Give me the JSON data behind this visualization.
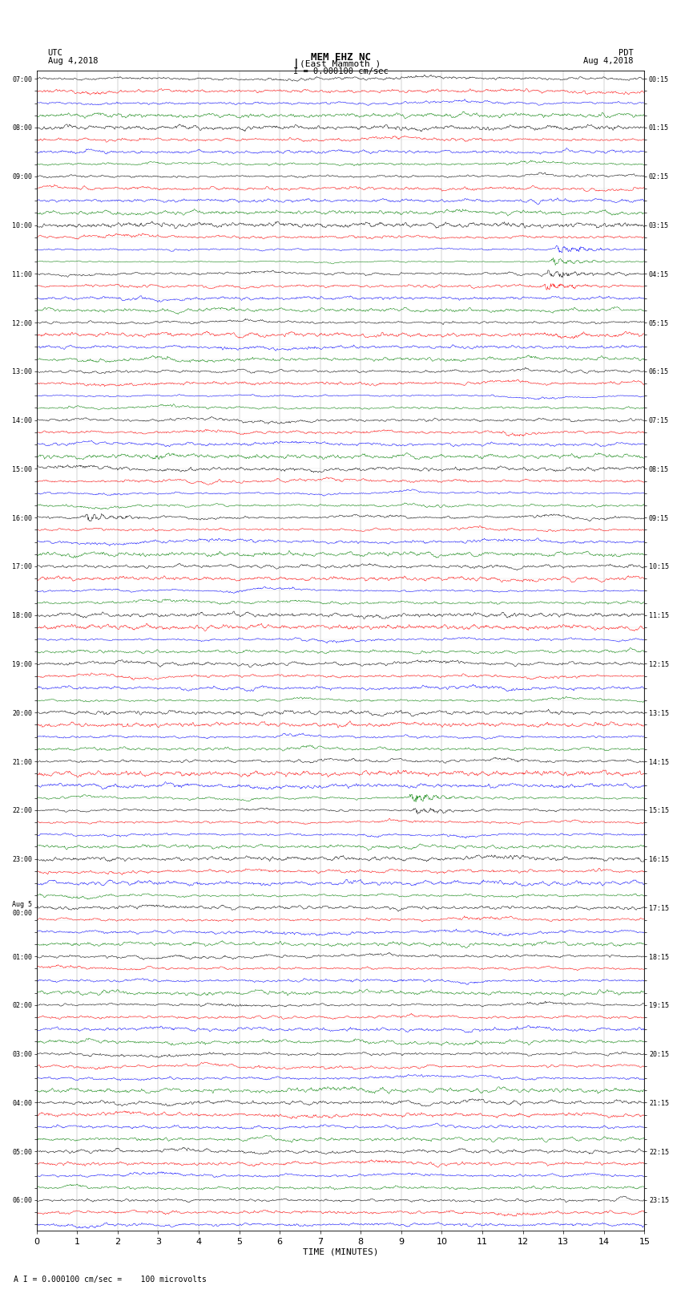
{
  "title_line1": "MEM EHZ NC",
  "title_line2": "(East Mammoth )",
  "scale_label": "I = 0.000100 cm/sec",
  "left_header_line1": "UTC",
  "left_header_line2": "Aug 4,2018",
  "right_header_line1": "PDT",
  "right_header_line2": "Aug 4,2018",
  "bottom_note": "A I = 0.000100 cm/sec =    100 microvolts",
  "xlabel": "TIME (MINUTES)",
  "utc_times": [
    "07:00",
    "",
    "",
    "",
    "08:00",
    "",
    "",
    "",
    "09:00",
    "",
    "",
    "",
    "10:00",
    "",
    "",
    "",
    "11:00",
    "",
    "",
    "",
    "12:00",
    "",
    "",
    "",
    "13:00",
    "",
    "",
    "",
    "14:00",
    "",
    "",
    "",
    "15:00",
    "",
    "",
    "",
    "16:00",
    "",
    "",
    "",
    "17:00",
    "",
    "",
    "",
    "18:00",
    "",
    "",
    "",
    "19:00",
    "",
    "",
    "",
    "20:00",
    "",
    "",
    "",
    "21:00",
    "",
    "",
    "",
    "22:00",
    "",
    "",
    "",
    "23:00",
    "",
    "",
    "",
    "Aug 5\n00:00",
    "",
    "",
    "",
    "01:00",
    "",
    "",
    "",
    "02:00",
    "",
    "",
    "",
    "03:00",
    "",
    "",
    "",
    "04:00",
    "",
    "",
    "",
    "05:00",
    "",
    "",
    "",
    "06:00",
    "",
    ""
  ],
  "pdt_times": [
    "00:15",
    "",
    "",
    "",
    "01:15",
    "",
    "",
    "",
    "02:15",
    "",
    "",
    "",
    "03:15",
    "",
    "",
    "",
    "04:15",
    "",
    "",
    "",
    "05:15",
    "",
    "",
    "",
    "06:15",
    "",
    "",
    "",
    "07:15",
    "",
    "",
    "",
    "08:15",
    "",
    "",
    "",
    "09:15",
    "",
    "",
    "",
    "10:15",
    "",
    "",
    "",
    "11:15",
    "",
    "",
    "",
    "12:15",
    "",
    "",
    "",
    "13:15",
    "",
    "",
    "",
    "14:15",
    "",
    "",
    "",
    "15:15",
    "",
    "",
    "",
    "16:15",
    "",
    "",
    "",
    "17:15",
    "",
    "",
    "",
    "18:15",
    "",
    "",
    "",
    "19:15",
    "",
    "",
    "",
    "20:15",
    "",
    "",
    "",
    "21:15",
    "",
    "",
    "",
    "22:15",
    "",
    "",
    "",
    "23:15",
    "",
    ""
  ],
  "colors": [
    "black",
    "red",
    "blue",
    "green"
  ],
  "n_rows": 95,
  "n_minutes": 15,
  "bg_color": "white",
  "seed": 42
}
